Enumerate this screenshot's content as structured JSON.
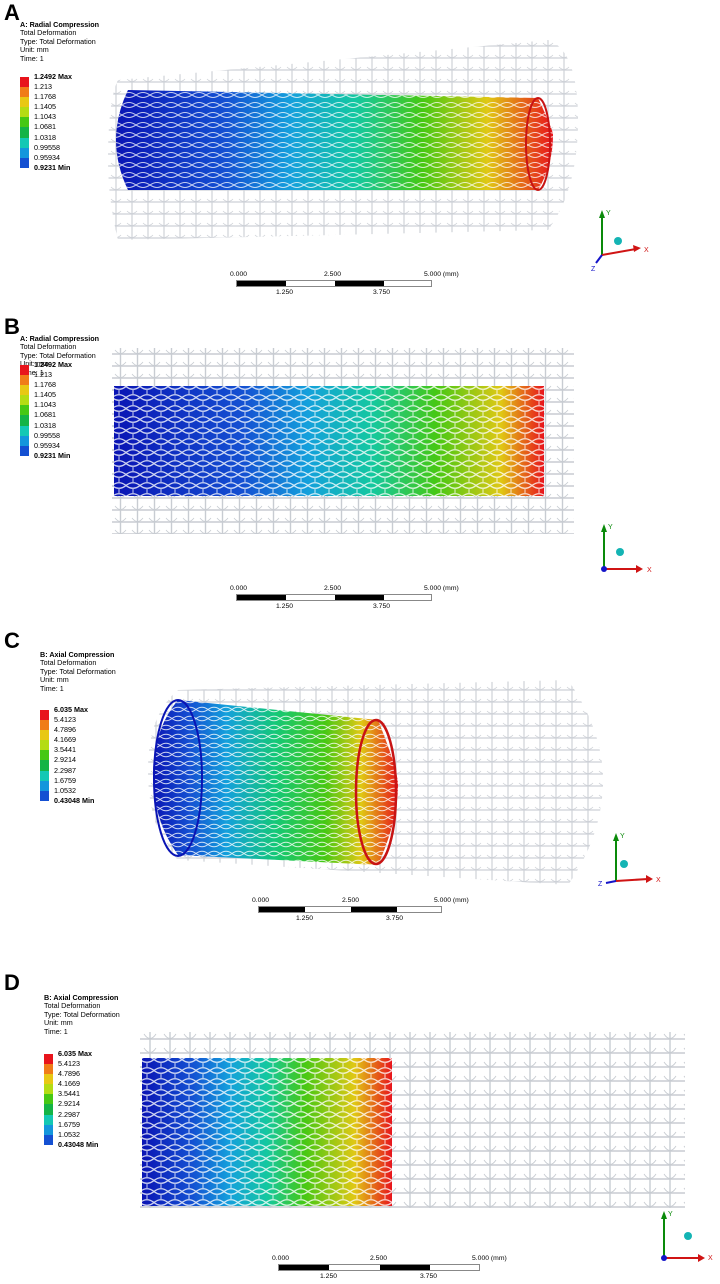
{
  "panels": [
    {
      "letter": "A",
      "title": "A: Radial Compression",
      "lines": [
        "Total Deformation",
        "Type: Total Deformation",
        "Unit: mm",
        "Time: 1"
      ],
      "legend": [
        "1.2492 Max",
        "1.213",
        "1.1768",
        "1.1405",
        "1.1043",
        "1.0681",
        "1.0318",
        "0.99558",
        "0.95934",
        "0.9231 Min"
      ],
      "scale_top": [
        "0.000",
        "2.500",
        "5.000 (mm)"
      ],
      "scale_bottom": [
        "1.250",
        "3.750"
      ],
      "triad": {
        "x": "X",
        "y": "Y",
        "z": "Z"
      }
    },
    {
      "letter": "B",
      "title": "A: Radial Compression",
      "lines": [
        "Total Deformation",
        "Type: Total Deformation",
        "Unit: mm",
        "Time: 1"
      ],
      "legend": [
        "1.2492 Max",
        "1.213",
        "1.1768",
        "1.1405",
        "1.1043",
        "1.0681",
        "1.0318",
        "0.99558",
        "0.95934",
        "0.9231 Min"
      ],
      "scale_top": [
        "0.000",
        "2.500",
        "5.000 (mm)"
      ],
      "scale_bottom": [
        "1.250",
        "3.750"
      ],
      "triad": {
        "x": "X",
        "y": "Y",
        "z": ""
      }
    },
    {
      "letter": "C",
      "title": "B: Axial Compression",
      "lines": [
        "Total Deformation",
        "Type: Total Deformation",
        "Unit: mm",
        "Time: 1"
      ],
      "legend": [
        "6.035 Max",
        "5.4123",
        "4.7896",
        "4.1669",
        "3.5441",
        "2.9214",
        "2.2987",
        "1.6759",
        "1.0532",
        "0.43048 Min"
      ],
      "scale_top": [
        "0.000",
        "2.500",
        "5.000 (mm)"
      ],
      "scale_bottom": [
        "1.250",
        "3.750"
      ],
      "triad": {
        "x": "X",
        "y": "Y",
        "z": "Z"
      }
    },
    {
      "letter": "D",
      "title": "B: Axial Compression",
      "lines": [
        "Total Deformation",
        "Type: Total Deformation",
        "Unit: mm",
        "Time: 1"
      ],
      "legend": [
        "6.035 Max",
        "5.4123",
        "4.7896",
        "4.1669",
        "3.5441",
        "2.9214",
        "2.2987",
        "1.6759",
        "1.0532",
        "0.43048 Min"
      ],
      "scale_top": [
        "0.000",
        "2.500",
        "5.000 (mm)"
      ],
      "scale_bottom": [
        "1.250",
        "3.750"
      ],
      "triad": {
        "x": "X",
        "y": "Y",
        "z": ""
      }
    }
  ],
  "legend_colors": [
    "#e8141c",
    "#f07c18",
    "#e8c814",
    "#b4dc14",
    "#46c814",
    "#14b446",
    "#14c8b4",
    "#1496dc",
    "#1450d2",
    "#0a14b4"
  ],
  "icons": {
    "triad": "coordinate-triad-icon"
  }
}
